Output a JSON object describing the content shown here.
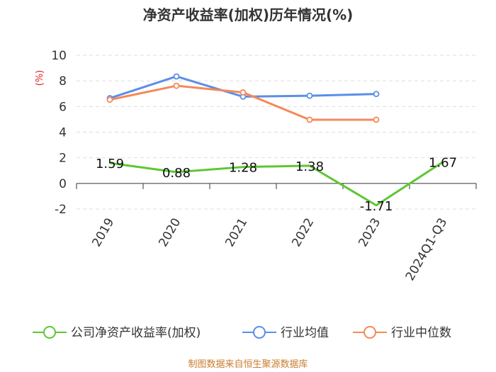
{
  "chart_data": {
    "type": "line",
    "title": "净资产收益率(加权)历年情况(%)",
    "unit_label": "(%)",
    "categories": [
      "2019",
      "2020",
      "2021",
      "2022",
      "2023",
      "2024Q1-Q3"
    ],
    "ylim": [
      -2,
      10
    ],
    "yticks": [
      -2,
      0,
      2,
      4,
      6,
      8,
      10
    ],
    "grid": "horizontal-dashed",
    "legend_position": "bottom",
    "series": [
      {
        "name": "公司净资产收益率(加权)",
        "color": "#5dc733",
        "values": [
          1.59,
          0.88,
          1.28,
          1.38,
          -1.71,
          1.67
        ],
        "labels": [
          "1.59",
          "0.88",
          "1.28",
          "1.38",
          "-1.71",
          "1.67"
        ]
      },
      {
        "name": "行业均值",
        "color": "#5b8ee6",
        "values": [
          6.65,
          8.35,
          6.77,
          6.84,
          6.98,
          null
        ]
      },
      {
        "name": "行业中位数",
        "color": "#f5895a",
        "values": [
          6.53,
          7.62,
          7.1,
          4.97,
          4.97,
          null
        ]
      }
    ]
  },
  "source_text": "制图数据来自恒生聚源数据库"
}
